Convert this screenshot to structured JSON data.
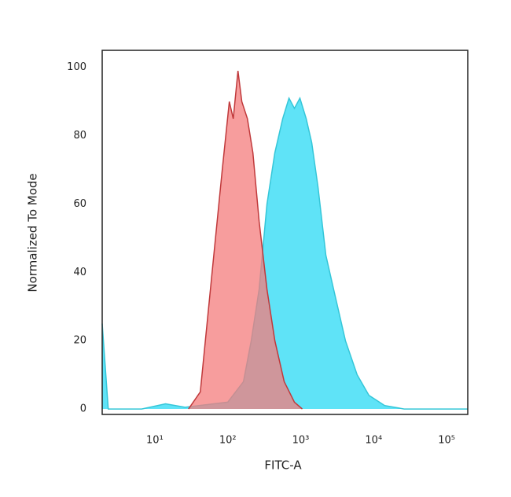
{
  "chart_data": {
    "type": "area",
    "xlabel": "FITC-A",
    "ylabel": "Normalized To Mode",
    "xscale": "log",
    "xlim": [
      1.9,
      195000
    ],
    "ylim": [
      -1.6,
      105
    ],
    "xticks": [
      {
        "value": 10,
        "label": "10¹"
      },
      {
        "value": 100,
        "label": "10²"
      },
      {
        "value": 1000,
        "label": "10³"
      },
      {
        "value": 10000,
        "label": "10⁴"
      },
      {
        "value": 100000,
        "label": "10⁵"
      }
    ],
    "yticks": [
      0,
      20,
      40,
      60,
      80,
      100
    ],
    "grid": false,
    "series": [
      {
        "color": "#5fe3f7",
        "line_color": "#35c6d8",
        "x": [
          1.9,
          2.3,
          6.6,
          14,
          26,
          100,
          164,
          210,
          269,
          345,
          442,
          566,
          690,
          820,
          975,
          1190,
          1415,
          1726,
          2210,
          2830,
          4100,
          5940,
          8610,
          14150,
          26200,
          195000
        ],
        "values": [
          25,
          0,
          0,
          1.5,
          0.5,
          2,
          8,
          20,
          35,
          60,
          75,
          85,
          91,
          88,
          91,
          85,
          78,
          65,
          45,
          35,
          20,
          10,
          4,
          1,
          0,
          0
        ]
      },
      {
        "color": "#f47c7c",
        "line_color": "#c0393b",
        "x": [
          29,
          42,
          61,
          84,
          105,
          119,
          138,
          156,
          186,
          221,
          269,
          345,
          442,
          594,
          820,
          1050
        ],
        "values": [
          0,
          5,
          40,
          70,
          90,
          85,
          99,
          90,
          85,
          75,
          55,
          35,
          20,
          8,
          2,
          0
        ]
      }
    ]
  }
}
